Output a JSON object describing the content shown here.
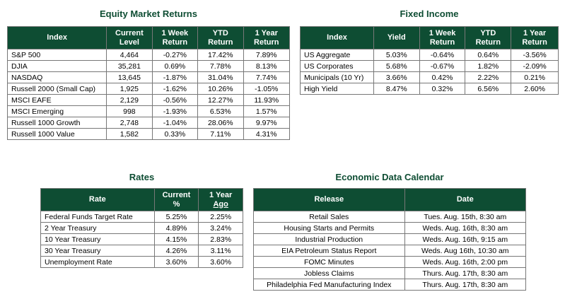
{
  "equity": {
    "title": "Equity Market Returns",
    "headers": [
      "Index",
      "Current Level",
      "1 Week Return",
      "YTD Return",
      "1 Year Return"
    ],
    "header_lines": [
      [
        "Index"
      ],
      [
        "Current",
        "Level"
      ],
      [
        "1 Week",
        "Return"
      ],
      [
        "YTD",
        "Return"
      ],
      [
        "1 Year",
        "Return"
      ]
    ],
    "rows": [
      [
        "S&P 500",
        "4,464",
        "-0.27%",
        "17.42%",
        "7.89%"
      ],
      [
        "DJIA",
        "35,281",
        "0.69%",
        "7.78%",
        "8.13%"
      ],
      [
        "NASDAQ",
        "13,645",
        "-1.87%",
        "31.04%",
        "7.74%"
      ],
      [
        "Russell 2000 (Small Cap)",
        "1,925",
        "-1.62%",
        "10.26%",
        "-1.05%"
      ],
      [
        "MSCI EAFE",
        "2,129",
        "-0.56%",
        "12.27%",
        "11.93%"
      ],
      [
        "MSCI Emerging",
        "998",
        "-1.93%",
        "6.53%",
        "1.57%"
      ],
      [
        "Russell 1000 Growth",
        "2,748",
        "-1.04%",
        "28.06%",
        "9.97%"
      ],
      [
        "Russell 1000 Value",
        "1,582",
        "0.33%",
        "7.11%",
        "4.31%"
      ]
    ]
  },
  "fixed": {
    "title": "Fixed Income",
    "header_lines": [
      [
        "Index"
      ],
      [
        "Yield"
      ],
      [
        "1 Week",
        "Return"
      ],
      [
        "YTD",
        "Return"
      ],
      [
        "1 Year",
        "Return"
      ]
    ],
    "rows": [
      [
        "US Aggregate",
        "5.03%",
        "-0.64%",
        "0.64%",
        "-3.56%"
      ],
      [
        "US Corporates",
        "5.68%",
        "-0.67%",
        "1.82%",
        "-2.09%"
      ],
      [
        "Municipals (10 Yr)",
        "3.66%",
        "0.42%",
        "2.22%",
        "0.21%"
      ],
      [
        "High Yield",
        "8.47%",
        "0.32%",
        "6.56%",
        "2.60%"
      ]
    ]
  },
  "rates": {
    "title": "Rates",
    "header_lines": [
      [
        "Rate"
      ],
      [
        "Current",
        "%"
      ],
      [
        "1 Year",
        "Ago"
      ]
    ],
    "rows": [
      [
        "Federal Funds Target Rate",
        "5.25%",
        "2.25%"
      ],
      [
        "2 Year Treasury",
        "4.89%",
        "3.24%"
      ],
      [
        "10 Year Treasury",
        "4.15%",
        "2.83%"
      ],
      [
        "30 Year Treasury",
        "4.26%",
        "3.11%"
      ],
      [
        "Unemployment Rate",
        "3.60%",
        "3.60%"
      ]
    ]
  },
  "calendar": {
    "title": "Economic Data Calendar",
    "header_lines": [
      [
        "Release"
      ],
      [
        "Date"
      ]
    ],
    "rows": [
      [
        "Retail Sales",
        "Tues. Aug. 15th, 8:30 am"
      ],
      [
        "Housing Starts and Permits",
        "Weds. Aug. 16th, 8:30 am"
      ],
      [
        "Industrial Production",
        "Weds. Aug. 16th, 9:15 am"
      ],
      [
        "EIA Petroleum Status Report",
        "Weds. Aug 16th, 10:30 am"
      ],
      [
        "FOMC Minutes",
        "Weds. Aug. 16th, 2:00 pm"
      ],
      [
        "Jobless Claims",
        "Thurs. Aug. 17th, 8:30 am"
      ],
      [
        "Philadelphia Fed Manufacturing Index",
        "Thurs. Aug. 17th, 8:30 am"
      ]
    ]
  },
  "colors": {
    "header_bg": "#0e4d33",
    "title": "#0e4d33"
  }
}
